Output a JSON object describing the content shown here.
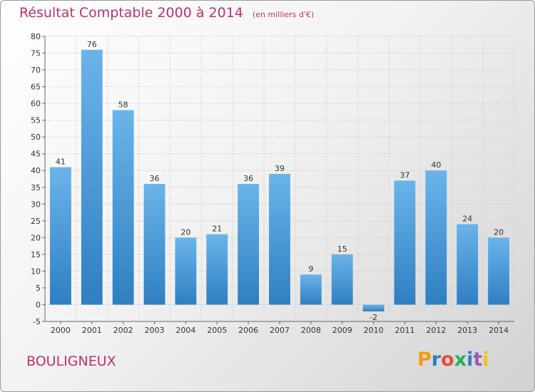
{
  "header": {
    "title": "Résultat Comptable 2000 à 2014",
    "subtitle": "(en milliers d'€)"
  },
  "footer": {
    "commune": "BOULIGNEUX",
    "logo_text": "Proxiti"
  },
  "colors": {
    "bar_light": "#6ab4ea",
    "bar_dark": "#2f7fc1",
    "title": "#c0306a",
    "logo": [
      "#f39c12",
      "#2f7fc1",
      "#e74c3c",
      "#27ae60",
      "#2f7fc1",
      "#9b59b6",
      "#f1c40f"
    ]
  },
  "chart_data": {
    "type": "bar",
    "categories": [
      "2000",
      "2001",
      "2002",
      "2003",
      "2004",
      "2005",
      "2006",
      "2007",
      "2008",
      "2009",
      "2010",
      "2011",
      "2012",
      "2013",
      "2014"
    ],
    "values": [
      41,
      76,
      58,
      36,
      20,
      21,
      36,
      39,
      9,
      15,
      -2,
      37,
      40,
      24,
      20
    ],
    "ylim": [
      -5,
      80
    ],
    "yticks": [
      -5,
      0,
      5,
      10,
      15,
      20,
      25,
      30,
      35,
      40,
      45,
      50,
      55,
      60,
      65,
      70,
      75,
      80
    ],
    "grid": true
  }
}
